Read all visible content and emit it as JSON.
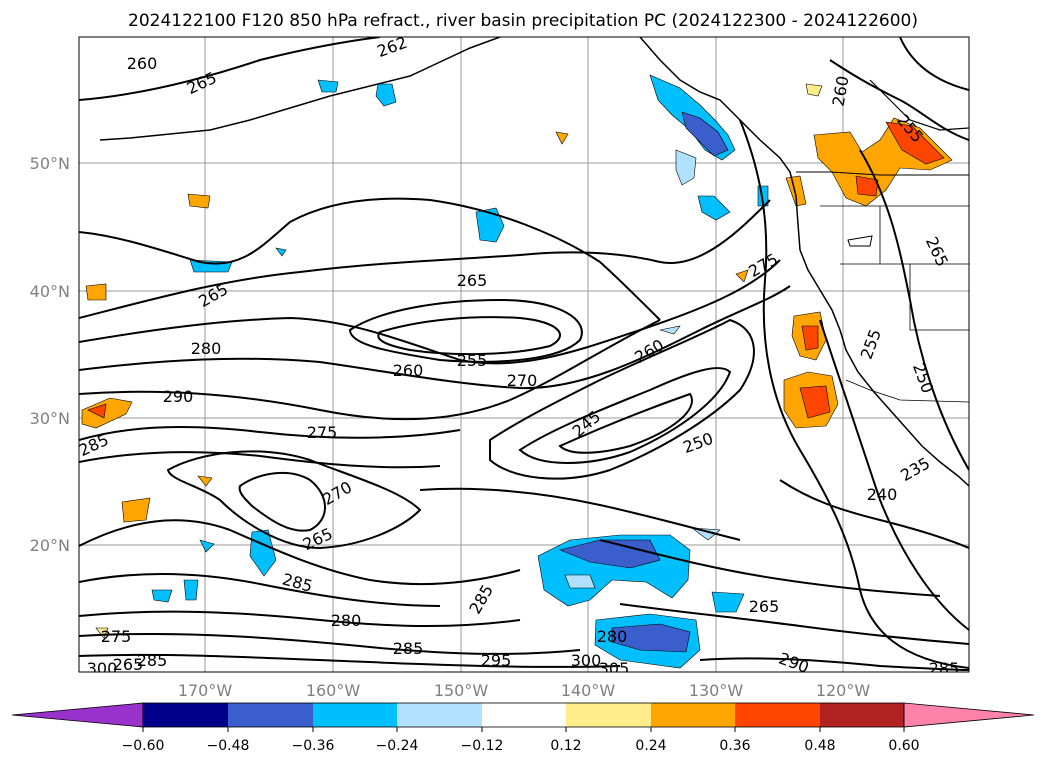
{
  "title": "2024122100 F120 850 hPa refract., river basin precipitation PC (2024122300 - 2024122600)",
  "lat_labels": [
    "50°N",
    "40°N",
    "30°N",
    "20°N"
  ],
  "lon_labels": [
    "170°W",
    "160°W",
    "150°W",
    "140°W",
    "130°W",
    "120°W"
  ],
  "colorbar": {
    "tick_labels": [
      "−0.60",
      "−0.48",
      "−0.36",
      "−0.24",
      "−0.12",
      "0.12",
      "0.24",
      "0.36",
      "0.48",
      "0.60"
    ],
    "colors": [
      "#9932cc",
      "#00008b",
      "#3a5fcd",
      "#00bfff",
      "#b0e2ff",
      "#ffffff",
      "#ffec8b",
      "#ffa500",
      "#ff4500",
      "#b22222",
      "#ff82ab"
    ]
  },
  "contour_labels": [
    "260",
    "265",
    "262",
    "260",
    "255",
    "265",
    "265",
    "280",
    "290",
    "285",
    "275",
    "265",
    "260",
    "255",
    "270",
    "260",
    "245",
    "250",
    "275",
    "255",
    "250",
    "235",
    "240",
    "270",
    "265",
    "285",
    "285",
    "280",
    "275",
    "285",
    "295",
    "300",
    "305",
    "280",
    "265",
    "290",
    "285",
    "300",
    "285",
    "265"
  ]
}
